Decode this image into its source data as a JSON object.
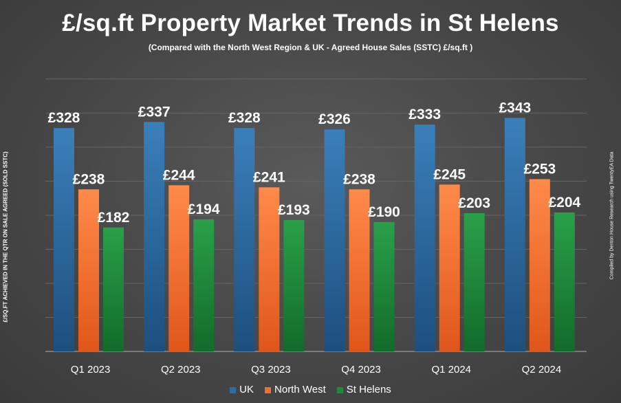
{
  "chart_data": {
    "type": "bar",
    "title": "£/sq.ft Property Market Trends in St Helens",
    "subtitle": "(Compared with the North West Region & UK - Agreed House Sales (SSTC) £/sq.ft )",
    "ylabel": "£/SQ.FT ACHIEVED IN THE QTR ON SALE AGREED (SOLD SSTC)",
    "xlabel": "",
    "ylim": [
      0,
      410
    ],
    "grid": true,
    "legend_position": "bottom",
    "categories": [
      "Q1 2023",
      "Q2 2023",
      "Q3 2023",
      "Q4 2023",
      "Q1 2024",
      "Q2 2024"
    ],
    "series": [
      {
        "name": "UK",
        "color": "#2e6da4",
        "values": [
          328,
          337,
          328,
          326,
          333,
          343
        ],
        "labels": [
          "£328",
          "£337",
          "£328",
          "£326",
          "£333",
          "£343"
        ]
      },
      {
        "name": "North West",
        "color": "#f07030",
        "values": [
          238,
          244,
          241,
          238,
          245,
          253
        ],
        "labels": [
          "£238",
          "£244",
          "£241",
          "£238",
          "£245",
          "£253"
        ]
      },
      {
        "name": "St Helens",
        "color": "#1f8a3a",
        "values": [
          182,
          194,
          193,
          190,
          203,
          204
        ],
        "labels": [
          "£182",
          "£194",
          "£193",
          "£190",
          "£203",
          "£204"
        ]
      }
    ]
  },
  "credit": "Compiled by Denton House Research using TwentyEA Data"
}
